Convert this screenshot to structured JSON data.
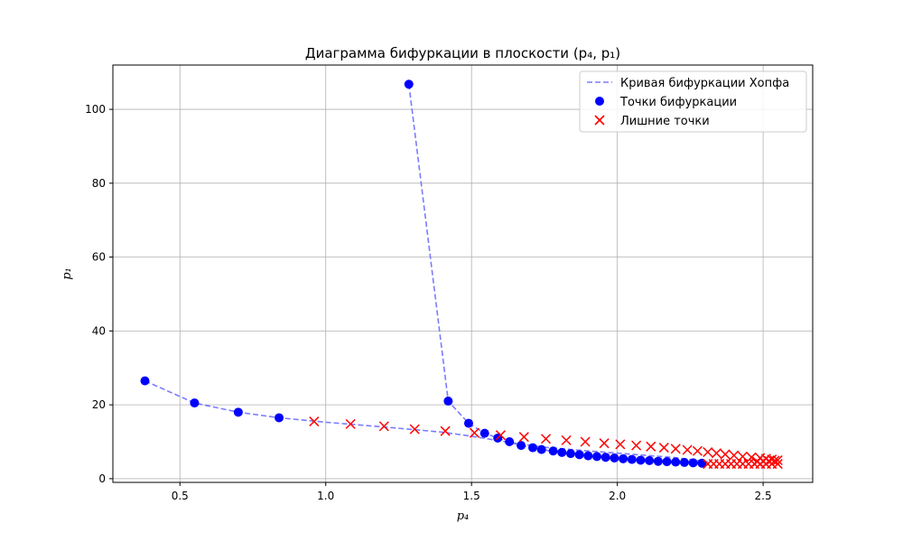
{
  "chart_data": {
    "type": "scatter",
    "title": "Диаграмма бифуркации в плоскости (p₄, p₁)",
    "xlabel": "p₄",
    "ylabel": "p₁",
    "xlim": [
      0.27,
      2.67
    ],
    "ylim": [
      -1,
      112
    ],
    "x_ticks": [
      0.5,
      1.0,
      1.5,
      2.0,
      2.5
    ],
    "x_tick_labels": [
      "0.5",
      "1.0",
      "1.5",
      "2.0",
      "2.5"
    ],
    "y_ticks": [
      0,
      20,
      40,
      60,
      80,
      100
    ],
    "y_tick_labels": [
      "0",
      "20",
      "40",
      "60",
      "80",
      "100"
    ],
    "grid": true,
    "legend_position": "top-right",
    "colors": {
      "curve": "#7b7bff",
      "points": "#0000ff",
      "extra": "#ff0000",
      "grid": "#b0b0b0",
      "axes": "#000000"
    },
    "series": [
      {
        "name": "Кривая бифуркации Хопфа",
        "kind": "dashed-line",
        "segments": [
          [
            [
              0.38,
              26.5
            ],
            [
              0.55,
              20.5
            ],
            [
              0.7,
              18.0
            ],
            [
              0.84,
              16.5
            ],
            [
              1.0,
              15.3
            ],
            [
              1.2,
              14.0
            ],
            [
              1.4,
              12.6
            ],
            [
              1.5,
              11.5
            ],
            [
              1.6,
              10.2
            ],
            [
              1.75,
              8.5
            ],
            [
              1.9,
              7.5
            ],
            [
              2.05,
              6.6
            ],
            [
              2.2,
              5.7
            ],
            [
              2.31,
              4.6
            ]
          ],
          [
            [
              1.285,
              106.8
            ],
            [
              1.42,
              21.0
            ],
            [
              1.49,
              15.0
            ],
            [
              1.545,
              12.3
            ],
            [
              1.59,
              11.0
            ],
            [
              1.63,
              9.8
            ],
            [
              1.7,
              8.5
            ],
            [
              1.8,
              7.1
            ],
            [
              1.9,
              6.1
            ],
            [
              2.0,
              5.4
            ],
            [
              2.1,
              4.9
            ],
            [
              2.2,
              4.5
            ],
            [
              2.3,
              4.2
            ]
          ]
        ]
      },
      {
        "name": "Точки бифуркации",
        "kind": "circles",
        "points": [
          [
            0.38,
            26.5
          ],
          [
            0.55,
            20.5
          ],
          [
            0.7,
            18.0
          ],
          [
            0.84,
            16.5
          ],
          [
            1.285,
            106.8
          ],
          [
            1.42,
            21.0
          ],
          [
            1.49,
            15.0
          ],
          [
            1.545,
            12.3
          ],
          [
            1.59,
            11.0
          ],
          [
            1.63,
            10.0
          ],
          [
            1.67,
            9.0
          ],
          [
            1.71,
            8.4
          ],
          [
            1.74,
            7.9
          ],
          [
            1.78,
            7.5
          ],
          [
            1.81,
            7.1
          ],
          [
            1.84,
            6.8
          ],
          [
            1.87,
            6.5
          ],
          [
            1.9,
            6.2
          ],
          [
            1.93,
            6.0
          ],
          [
            1.96,
            5.8
          ],
          [
            1.99,
            5.6
          ],
          [
            2.02,
            5.4
          ],
          [
            2.05,
            5.2
          ],
          [
            2.08,
            5.0
          ],
          [
            2.11,
            4.9
          ],
          [
            2.14,
            4.7
          ],
          [
            2.17,
            4.6
          ],
          [
            2.2,
            4.5
          ],
          [
            2.23,
            4.4
          ],
          [
            2.26,
            4.3
          ],
          [
            2.29,
            4.2
          ]
        ]
      },
      {
        "name": "Лишние точки",
        "kind": "crosses",
        "points": [
          [
            0.96,
            15.5
          ],
          [
            1.085,
            14.8
          ],
          [
            1.2,
            14.2
          ],
          [
            1.305,
            13.4
          ],
          [
            1.41,
            12.9
          ],
          [
            1.51,
            12.4
          ],
          [
            1.6,
            11.8
          ],
          [
            1.68,
            11.3
          ],
          [
            1.755,
            10.8
          ],
          [
            1.825,
            10.4
          ],
          [
            1.89,
            10.0
          ],
          [
            1.955,
            9.6
          ],
          [
            2.01,
            9.3
          ],
          [
            2.065,
            9.0
          ],
          [
            2.115,
            8.7
          ],
          [
            2.16,
            8.4
          ],
          [
            2.2,
            8.1
          ],
          [
            2.24,
            7.8
          ],
          [
            2.275,
            7.5
          ],
          [
            2.31,
            7.2
          ],
          [
            2.34,
            6.9
          ],
          [
            2.37,
            6.6
          ],
          [
            2.4,
            6.3
          ],
          [
            2.43,
            6.0
          ],
          [
            2.46,
            5.8
          ],
          [
            2.49,
            5.6
          ],
          [
            2.51,
            5.4
          ],
          [
            2.53,
            5.2
          ],
          [
            2.55,
            5.0
          ],
          [
            2.31,
            4.0
          ],
          [
            2.33,
            4.0
          ],
          [
            2.35,
            4.0
          ],
          [
            2.37,
            4.0
          ],
          [
            2.39,
            4.0
          ],
          [
            2.41,
            4.0
          ],
          [
            2.43,
            4.0
          ],
          [
            2.45,
            4.0
          ],
          [
            2.47,
            4.0
          ],
          [
            2.49,
            4.0
          ],
          [
            2.51,
            4.0
          ],
          [
            2.53,
            4.0
          ],
          [
            2.55,
            4.0
          ],
          [
            2.48,
            4.6
          ],
          [
            2.5,
            4.7
          ],
          [
            2.52,
            4.8
          ],
          [
            2.54,
            4.9
          ]
        ]
      }
    ]
  }
}
